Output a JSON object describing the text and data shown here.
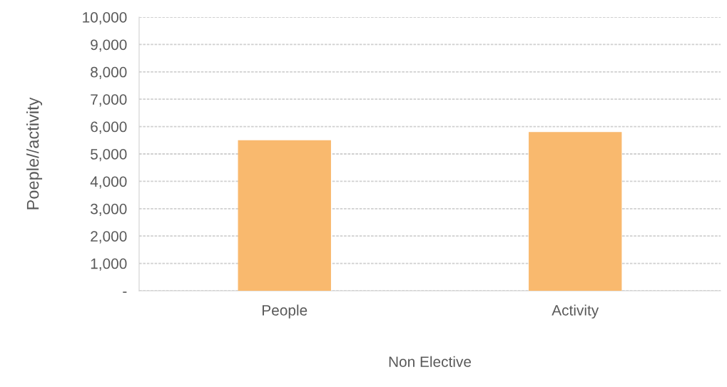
{
  "chart_data": {
    "type": "bar",
    "categories": [
      "People",
      "Activity"
    ],
    "values": [
      5500,
      5800
    ],
    "color": "#f9b96e",
    "xlabel": "Non Elective",
    "ylabel": "Poeple//activity",
    "ylim": [
      0,
      10000
    ],
    "yticks": [
      {
        "value": 0,
        "label": "-"
      },
      {
        "value": 1000,
        "label": "1,000"
      },
      {
        "value": 2000,
        "label": "2,000"
      },
      {
        "value": 3000,
        "label": "3,000"
      },
      {
        "value": 4000,
        "label": "4,000"
      },
      {
        "value": 5000,
        "label": "5,000"
      },
      {
        "value": 6000,
        "label": "6,000"
      },
      {
        "value": 7000,
        "label": "7,000"
      },
      {
        "value": 8000,
        "label": "8,000"
      },
      {
        "value": 9000,
        "label": "9,000"
      },
      {
        "value": 10000,
        "label": "10,000"
      }
    ],
    "grid": "y",
    "legend": false
  }
}
